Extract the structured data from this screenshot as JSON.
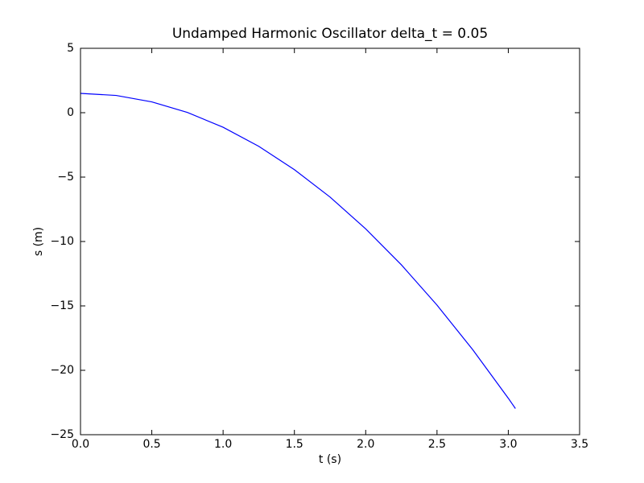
{
  "chart_data": {
    "type": "line",
    "title": "Undamped Harmonic Oscillator delta_t = 0.05",
    "x_label": "t (s)",
    "y_label": "s (m)",
    "x": [
      0,
      0.25,
      0.5,
      0.75,
      1.0,
      1.25,
      1.5,
      1.75,
      2.0,
      2.25,
      2.5,
      2.75,
      3.0,
      3.05
    ],
    "series": [
      {
        "color": "#0000ff",
        "values": [
          1.5,
          1.34,
          0.84,
          0.02,
          -1.13,
          -2.61,
          -4.42,
          -6.55,
          -9.02,
          -11.81,
          -14.94,
          -18.39,
          -22.17,
          -22.97
        ]
      }
    ],
    "xlim": [
      0,
      3.5
    ],
    "ylim": [
      -25,
      5
    ],
    "xticks": [
      {
        "value": 0,
        "label": "0.0"
      },
      0.5,
      {
        "value": 1,
        "label": "1.0"
      },
      1.5,
      {
        "value": 2,
        "label": "2.0"
      },
      2.5,
      {
        "value": 3,
        "label": "3.0"
      },
      3.5
    ],
    "yticks": [
      {
        "value": -25,
        "label": "−25"
      },
      {
        "value": -20,
        "label": "−20"
      },
      {
        "value": -15,
        "label": "−15"
      },
      {
        "value": -10,
        "label": "−10"
      },
      {
        "value": -5,
        "label": "−5"
      },
      0,
      5
    ],
    "grid": false
  }
}
